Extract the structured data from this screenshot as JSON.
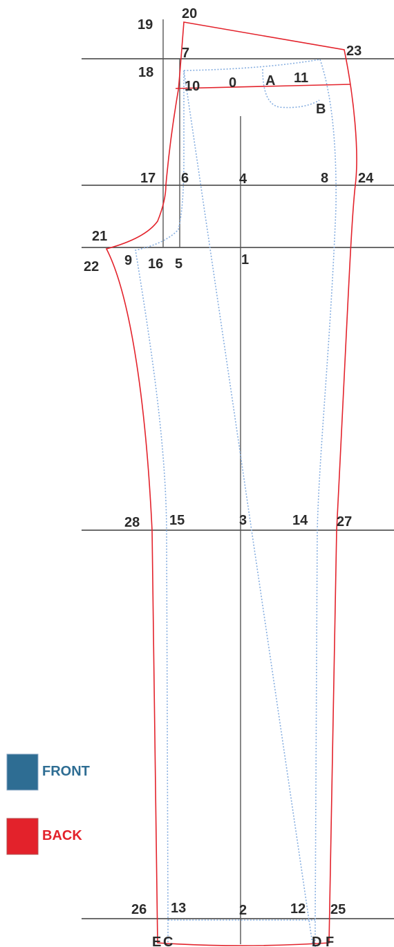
{
  "colors": {
    "front": "#2e6d93",
    "front_line": "#86aee0",
    "back": "#e3222b",
    "grid": "#3a3a3a",
    "text": "#2b2b2b"
  },
  "legend": {
    "front_label": "FRONT",
    "back_label": "BACK"
  },
  "points": {
    "p0": "0",
    "p1": "1",
    "p2": "2",
    "p3": "3",
    "p4": "4",
    "p5": "5",
    "p6": "6",
    "p7": "7",
    "p8": "8",
    "p9": "9",
    "p10": "10",
    "p11": "11",
    "p12": "12",
    "p13": "13",
    "p14": "14",
    "p15": "15",
    "p16": "16",
    "p17": "17",
    "p18": "18",
    "p19": "19",
    "p20": "20",
    "p21": "21",
    "p22": "22",
    "p23": "23",
    "p24": "24",
    "p25": "25",
    "p26": "26",
    "p27": "27",
    "p28": "28",
    "pA": "A",
    "pB": "B",
    "pC": "C",
    "pD": "D",
    "pE": "E",
    "pF": "F"
  }
}
